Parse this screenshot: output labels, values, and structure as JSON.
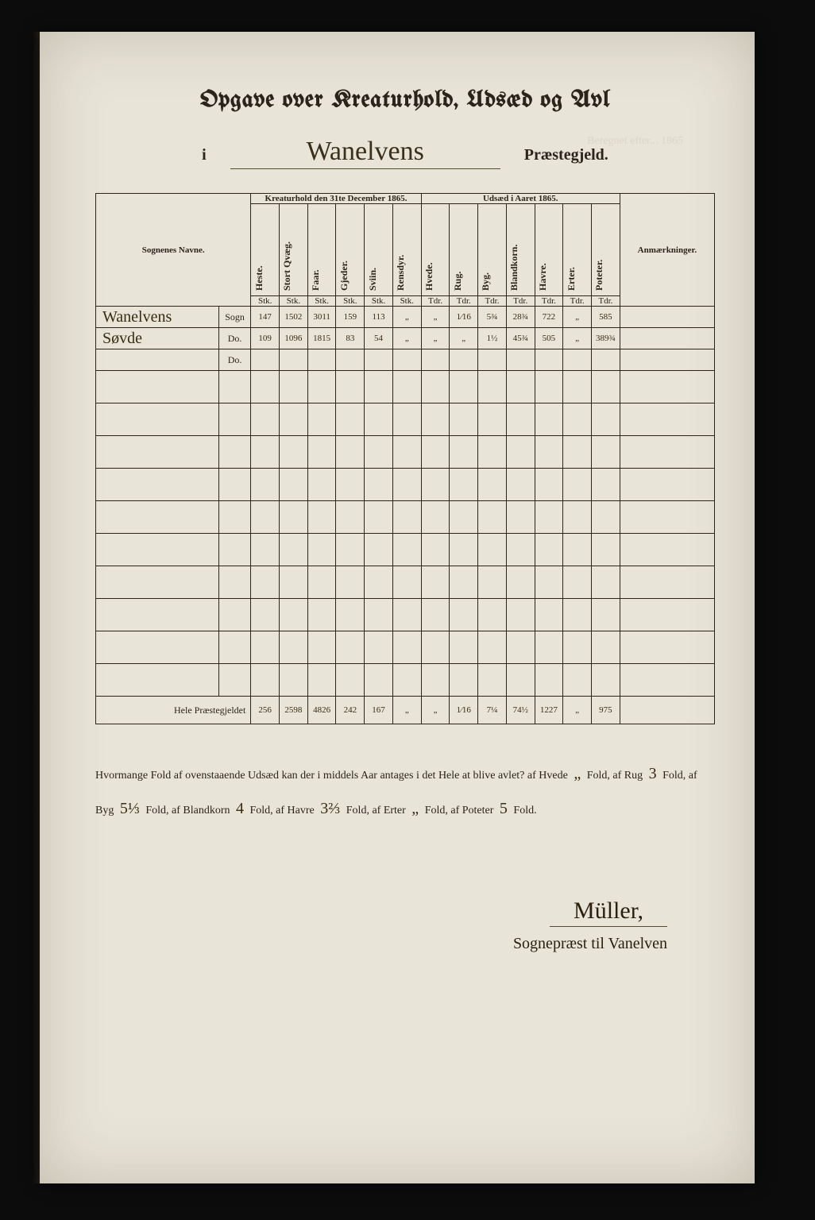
{
  "header": {
    "title": "Opgave over Kreaturhold, Udsæd og Avl",
    "prefix_i": "i",
    "parish_name": "Wanelvens",
    "suffix": "Præstegjeld."
  },
  "table": {
    "group1": "Kreaturhold den 31te December 1865.",
    "group2": "Udsæd i Aaret 1865.",
    "col_names_label": "Sognenes Navne.",
    "col_ann_label": "Anmærkninger.",
    "cols_livestock": [
      "Heste.",
      "Stort Qvæg.",
      "Faar.",
      "Gjeder.",
      "Sviin.",
      "Rensdyr."
    ],
    "cols_seed": [
      "Hvede.",
      "Rug.",
      "Byg.",
      "Blandkorn.",
      "Havre.",
      "Erter.",
      "Poteter."
    ],
    "unit_stf": "Stk.",
    "unit_tdr": "Tdr.",
    "rows": [
      {
        "name": "Wanelvens",
        "type": "Sogn",
        "livestock": [
          "147",
          "1502",
          "3011",
          "159",
          "113",
          "„"
        ],
        "seed": [
          "„",
          "1⁄16",
          "5¾",
          "28¾",
          "722",
          "„",
          "585"
        ],
        "ann": ""
      },
      {
        "name": "Søvde",
        "type": "Do.",
        "livestock": [
          "109",
          "1096",
          "1815",
          "83",
          "54",
          "„"
        ],
        "seed": [
          "„",
          "„",
          "1½",
          "45¾",
          "505",
          "„",
          "389¾"
        ],
        "ann": ""
      },
      {
        "name": "",
        "type": "Do.",
        "livestock": [
          "",
          "",
          "",
          "",
          "",
          ""
        ],
        "seed": [
          "",
          "",
          "",
          "",
          "",
          "",
          ""
        ],
        "ann": ""
      }
    ],
    "total_label": "Hele Præstegjeldet",
    "totals": {
      "livestock": [
        "256",
        "2598",
        "4826",
        "242",
        "167",
        "„"
      ],
      "seed": [
        "„",
        "1⁄16",
        "7¼",
        "74½",
        "1227",
        "„",
        "975"
      ]
    }
  },
  "fold": {
    "lead": "Hvormange Fold af ovenstaaende Udsæd kan der i middels Aar antages i det Hele at blive avlet? af Hvede",
    "hvede": "„",
    "t_fold_af": "Fold, af",
    "rug_label": "Rug",
    "rug": "3",
    "byg_label": "Fold, af Byg",
    "byg": "5⅓",
    "bland_label": "Fold, af Blandkorn",
    "bland": "4",
    "havre_label": "Fold, af Havre",
    "havre": "3⅔",
    "erter_label": "Fold, af Erter",
    "erter": "„",
    "poteter_label": "Fold, af Poteter",
    "poteter": "5",
    "tail": "Fold."
  },
  "signature": {
    "name": "Müller,",
    "role": "Sognepræst til Vanelven"
  },
  "colors": {
    "paper": "#e8e4d8",
    "ink_print": "#2a241a",
    "ink_hand": "#3a2a10",
    "frame": "#0c0c0c"
  },
  "typography": {
    "title_pt": 30,
    "script_pt": 34,
    "body_pt": 14,
    "table_pt": 11
  }
}
